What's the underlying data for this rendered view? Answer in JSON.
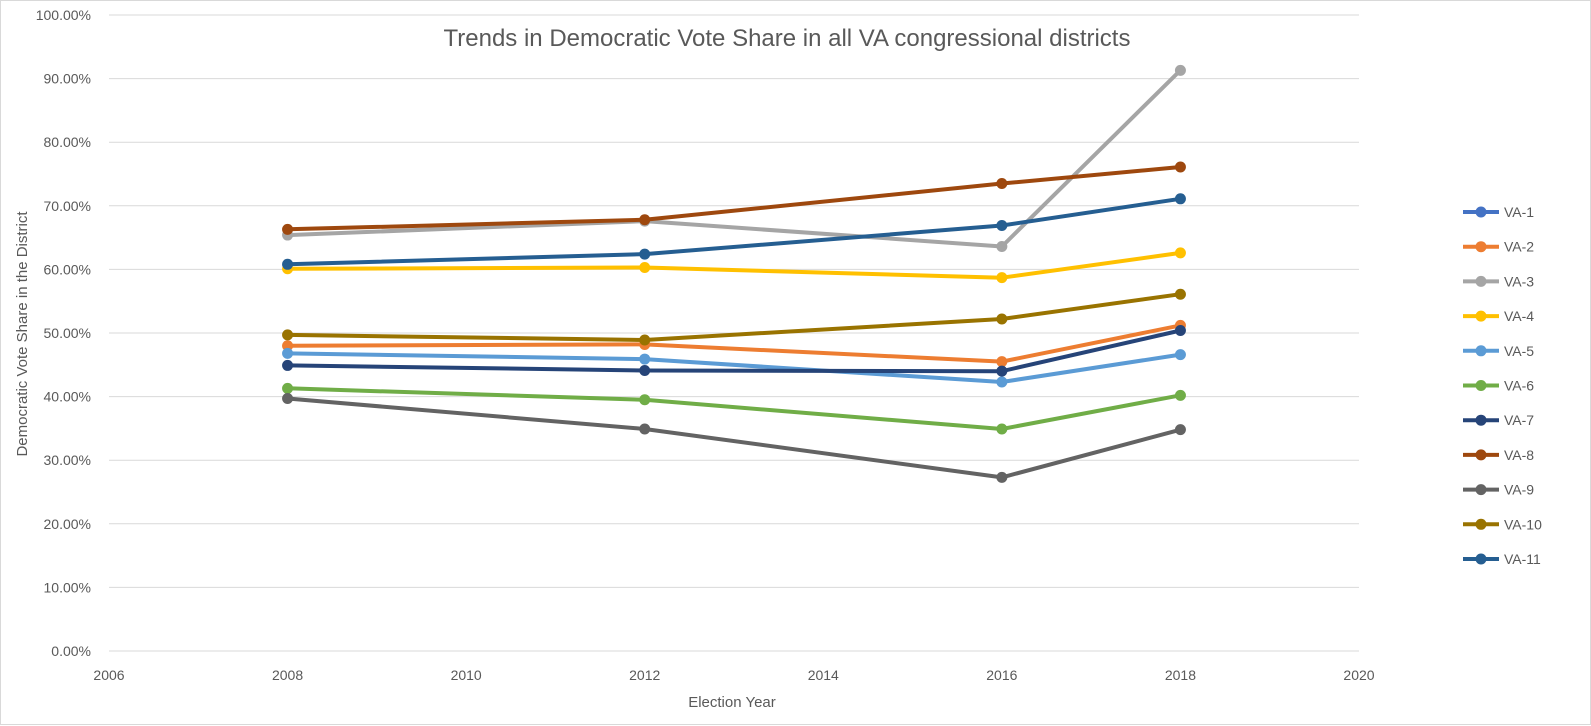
{
  "chart_data": {
    "type": "line",
    "title": "Trends in Democratic Vote Share in all VA congressional districts",
    "xlabel": "Election Year",
    "ylabel": "Democratic Vote Share in the District",
    "xlim": [
      2006,
      2020
    ],
    "ylim": [
      0,
      1.0
    ],
    "x_ticks": [
      "2006",
      "2008",
      "2010",
      "2012",
      "2014",
      "2016",
      "2018",
      "2020"
    ],
    "y_ticks": [
      "0.00%",
      "10.00%",
      "20.00%",
      "30.00%",
      "40.00%",
      "50.00%",
      "60.00%",
      "70.00%",
      "80.00%",
      "90.00%",
      "100.00%"
    ],
    "grid": "horizontal",
    "legend_position": "right",
    "x": [
      2008,
      2012,
      2016,
      2018
    ],
    "series": [
      {
        "name": "VA-1",
        "color": "#4472C4",
        "values": [
          null,
          null,
          null,
          null
        ]
      },
      {
        "name": "VA-2",
        "color": "#ED7D31",
        "values": [
          0.48,
          0.482,
          0.455,
          0.512
        ]
      },
      {
        "name": "VA-3",
        "color": "#A5A5A5",
        "values": [
          0.654,
          0.676,
          0.636,
          0.913
        ]
      },
      {
        "name": "VA-4",
        "color": "#FFC000",
        "values": [
          0.601,
          0.603,
          0.587,
          0.626
        ]
      },
      {
        "name": "VA-5",
        "color": "#5B9BD5",
        "values": [
          0.468,
          0.459,
          0.423,
          0.466
        ]
      },
      {
        "name": "VA-6",
        "color": "#70AD47",
        "values": [
          0.413,
          0.395,
          0.349,
          0.402
        ]
      },
      {
        "name": "VA-7",
        "color": "#264478",
        "values": [
          0.449,
          0.441,
          0.44,
          0.504
        ]
      },
      {
        "name": "VA-8",
        "color": "#9E480E",
        "values": [
          0.663,
          0.678,
          0.735,
          0.761
        ]
      },
      {
        "name": "VA-9",
        "color": "#636363",
        "values": [
          0.397,
          0.349,
          0.273,
          0.348
        ]
      },
      {
        "name": "VA-10",
        "color": "#997300",
        "values": [
          0.497,
          0.489,
          0.522,
          0.561
        ]
      },
      {
        "name": "VA-11",
        "color": "#255E91",
        "values": [
          0.608,
          0.624,
          0.669,
          0.711
        ]
      }
    ]
  }
}
